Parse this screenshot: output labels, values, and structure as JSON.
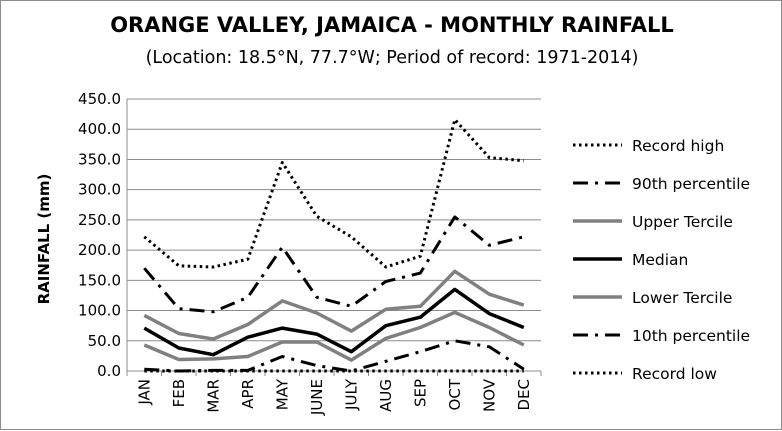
{
  "chart_data": {
    "type": "line",
    "title": "ORANGE VALLEY, JAMAICA - MONTHLY RAINFALL",
    "subtitle": "(Location: 18.5°N, 77.7°W; Period of record: 1971-2014)",
    "ylabel": "RAINFALL (mm)",
    "xlabel": "",
    "ylim": [
      0,
      450
    ],
    "ytick_labels": [
      "0.0",
      "50.0",
      "100.0",
      "150.0",
      "200.0",
      "250.0",
      "300.0",
      "350.0",
      "400.0",
      "450.0"
    ],
    "categories": [
      "JAN",
      "FEB",
      "MAR",
      "APR",
      "MAY",
      "JUNE",
      "JULY",
      "AUG",
      "SEP",
      "OCT",
      "NOV",
      "DEC"
    ],
    "grid": true,
    "legend_position": "right",
    "series": [
      {
        "name": "Record high",
        "style": "dotted",
        "color": "#000000",
        "values": [
          222,
          174,
          172,
          185,
          345,
          256,
          222,
          172,
          190,
          416,
          353,
          348
        ]
      },
      {
        "name": "90th percentile",
        "style": "dashdot",
        "color": "#000000",
        "values": [
          170,
          103,
          98,
          122,
          205,
          122,
          107,
          148,
          162,
          255,
          208,
          222
        ]
      },
      {
        "name": "Upper Tercile",
        "style": "solid",
        "color": "#808080",
        "values": [
          92,
          62,
          53,
          77,
          116,
          96,
          66,
          102,
          107,
          165,
          127,
          109
        ]
      },
      {
        "name": "Median",
        "style": "solid",
        "color": "#000000",
        "values": [
          71,
          38,
          27,
          56,
          71,
          61,
          32,
          75,
          89,
          135,
          95,
          72
        ]
      },
      {
        "name": "Lower Tercile",
        "style": "solid",
        "color": "#808080",
        "values": [
          43,
          19,
          20,
          24,
          48,
          48,
          18,
          54,
          72,
          97,
          72,
          43
        ]
      },
      {
        "name": "10th percentile",
        "style": "dashdot",
        "color": "#000000",
        "values": [
          3,
          0,
          1,
          1,
          24,
          9,
          0,
          16,
          32,
          50,
          40,
          3
        ]
      },
      {
        "name": "Record low",
        "style": "dotted",
        "color": "#000000",
        "values": [
          0,
          0,
          0,
          0,
          0,
          0,
          0,
          0,
          0,
          0,
          0,
          0
        ]
      }
    ]
  }
}
